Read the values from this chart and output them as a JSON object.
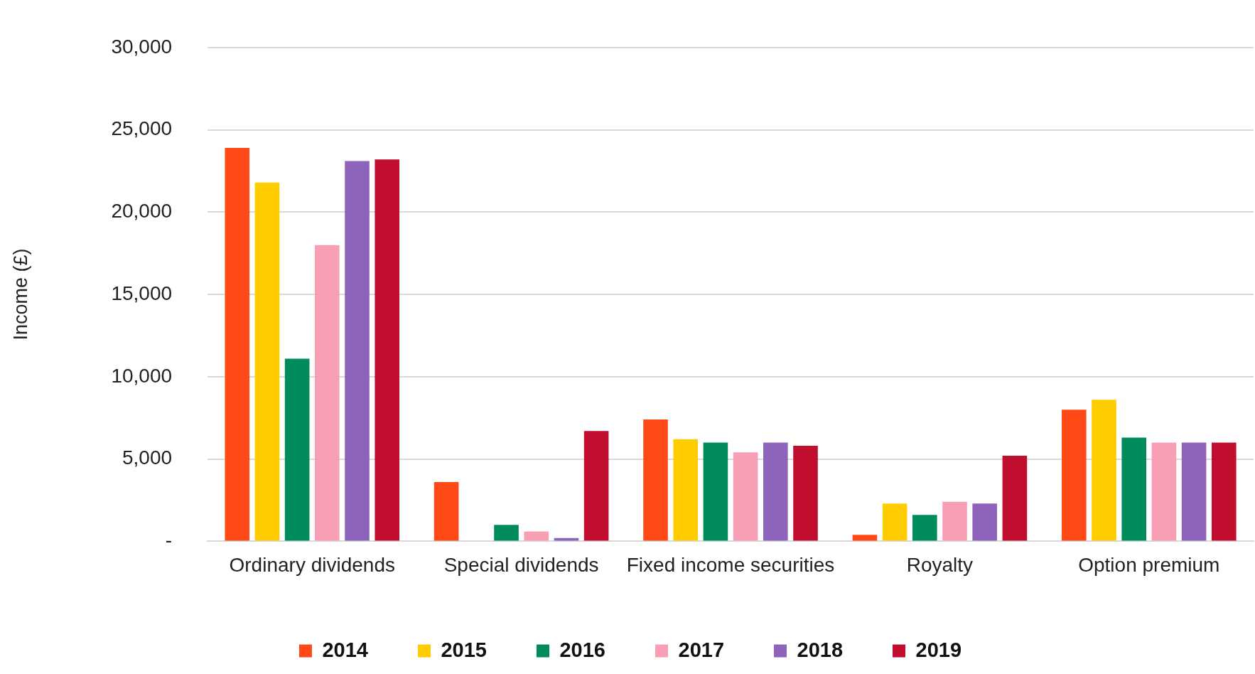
{
  "chart_data": {
    "type": "bar",
    "ylabel": "Income (£)",
    "categories": [
      "Ordinary dividends",
      "Special dividends",
      "Fixed income securities",
      "Royalty",
      "Option premium"
    ],
    "series": [
      {
        "name": "2014",
        "color": "#ff4a17",
        "values": [
          23900,
          3600,
          7400,
          400,
          8000
        ]
      },
      {
        "name": "2015",
        "color": "#ffcc00",
        "values": [
          21800,
          0,
          6200,
          2300,
          8600
        ]
      },
      {
        "name": "2016",
        "color": "#008c5a",
        "values": [
          11100,
          1000,
          6000,
          1600,
          6300
        ]
      },
      {
        "name": "2017",
        "color": "#f99fb5",
        "values": [
          18000,
          600,
          5400,
          2400,
          6000
        ]
      },
      {
        "name": "2018",
        "color": "#8e63bb",
        "values": [
          23100,
          200,
          6000,
          2300,
          6000
        ]
      },
      {
        "name": "2019",
        "color": "#c20e2e",
        "values": [
          23200,
          6700,
          5800,
          5200,
          6000
        ]
      }
    ],
    "ylim": [
      0,
      30000
    ],
    "yticks": [
      {
        "value": 0,
        "label": "-"
      },
      {
        "value": 5000,
        "label": "5,000"
      },
      {
        "value": 10000,
        "label": "10,000"
      },
      {
        "value": 15000,
        "label": "15,000"
      },
      {
        "value": 20000,
        "label": "20,000"
      },
      {
        "value": 25000,
        "label": "25,000"
      },
      {
        "value": 30000,
        "label": "30,000"
      }
    ],
    "grid": "y",
    "legend": "bottom"
  }
}
